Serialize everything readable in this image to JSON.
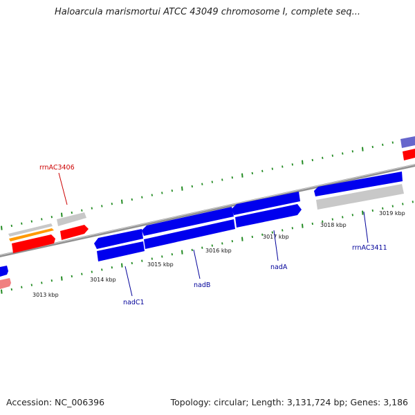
{
  "title": "Haloarcula marismortui ATCC 43049 chromosome I, complete seq...",
  "footer": {
    "accession": "Accession: NC_006396",
    "summary": "Topology: circular; Length: 3,131,724 bp; Genes: 3,186"
  },
  "ticks": {
    "labels": [
      "3013 kbp",
      "3014 kbp",
      "3015 kbp",
      "3016 kbp",
      "3017 kbp",
      "3018 kbp",
      "3019 kbp"
    ]
  },
  "gene_labels": {
    "rrnAC3406": "rrnAC3406",
    "nadC1": "nadC1",
    "nadB": "nadB",
    "nadA": "nadA",
    "rrnAC3411": "rrnAC3411"
  },
  "colors": {
    "backbone": "#808080",
    "gene_blue": "#0000ee",
    "gene_red": "#ff0000",
    "gene_grey": "#c0c0c0",
    "gene_orange": "#ff9900",
    "gene_pink": "#f08080",
    "gene_purple": "#6666cc",
    "tick_green": "#228b22",
    "label_red": "#cc0000",
    "label_blue": "#000099"
  }
}
